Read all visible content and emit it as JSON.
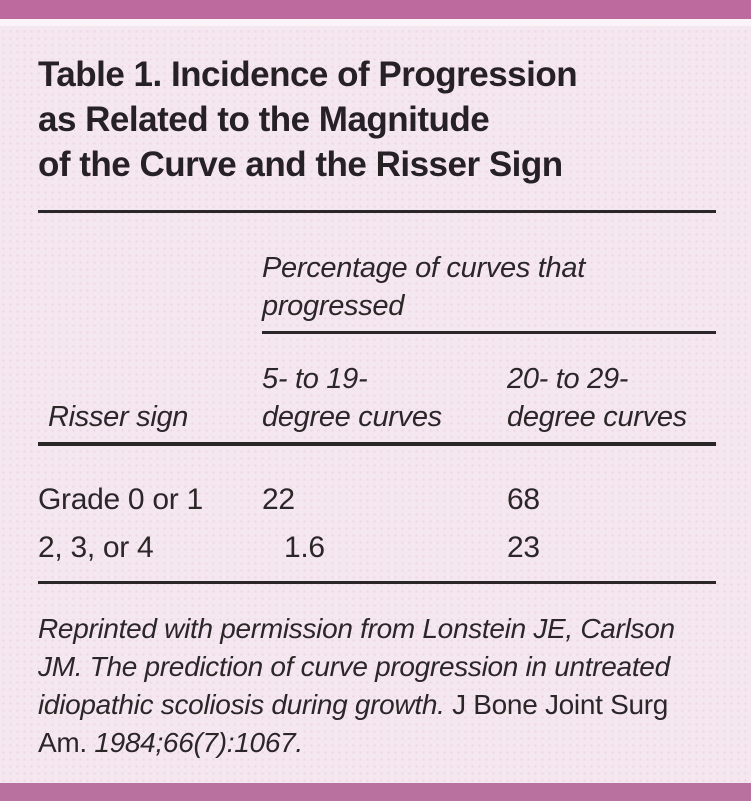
{
  "colors": {
    "top_bar": "#bd6a9e",
    "bottom_bar": "#b9729f",
    "background": "#f5e7f0",
    "text": "#2b2628"
  },
  "title": {
    "lines": [
      "Table 1. Incidence of Progression",
      "as Related to the Magnitude",
      "of the Curve and the Risser Sign"
    ]
  },
  "table": {
    "span_header": {
      "lines": [
        "Percentage of curves that",
        "progressed"
      ]
    },
    "column_headers": {
      "risser": "Risser sign",
      "col2_lines": [
        "5- to 19-",
        "degree curves"
      ],
      "col3_lines": [
        "20- to 29-",
        "degree curves"
      ]
    },
    "rows": [
      {
        "risser": "Grade 0 or 1",
        "curves_5_19": "22",
        "curves_20_29": "68"
      },
      {
        "risser": "2, 3, or 4",
        "curves_5_19": "1.6",
        "curves_20_29": "23"
      }
    ]
  },
  "footnote": {
    "italic_part": "Reprinted with permission from Lonstein JE, Carlson JM. The prediction of curve progression in untreated idiopathic scoliosis during growth.",
    "roman_part": " J Bone Joint Surg Am. ",
    "italic_citation": "1984;66(7):1067."
  }
}
